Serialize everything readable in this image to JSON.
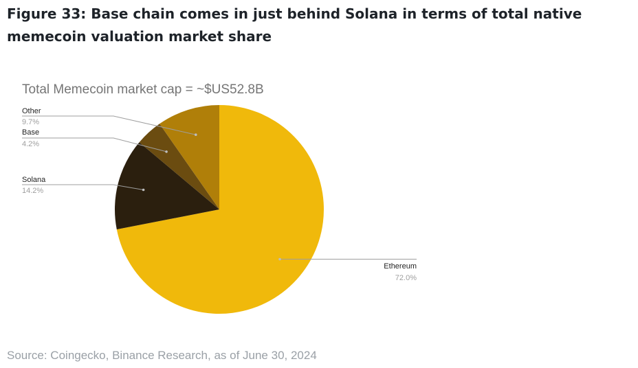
{
  "figure_title": "Figure 33: Base chain comes in just behind Solana in terms of total native memecoin valuation market share",
  "source": "Source: Coingecko, Binance Research, as of June 30, 2024",
  "chart_data": {
    "type": "pie",
    "title": "Total Memecoin market cap = ~$US52.8B",
    "slices": [
      {
        "name": "Ethereum",
        "value": 72.0,
        "label": "72.0%",
        "color": "#F0B90B"
      },
      {
        "name": "Solana",
        "value": 14.2,
        "label": "14.2%",
        "color": "#2B1F0E"
      },
      {
        "name": "Base",
        "value": 4.2,
        "label": "4.2%",
        "color": "#6B4C10"
      },
      {
        "name": "Other",
        "value": 9.7,
        "label": "9.7%",
        "color": "#B07F09"
      }
    ]
  }
}
